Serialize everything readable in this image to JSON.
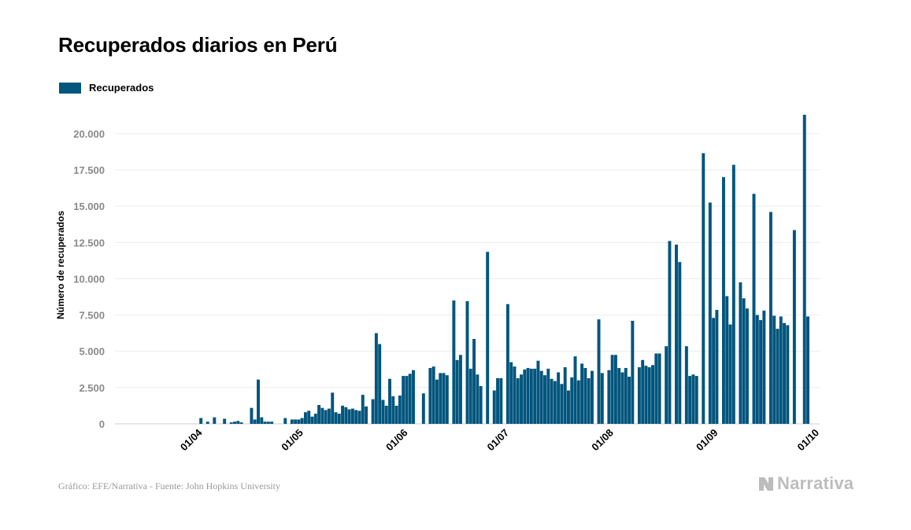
{
  "title": "Recuperados diarios en Perú",
  "footer": {
    "source": "Gráfico: EFE/Narrativa - Fuente: John Hopkins University",
    "brand": "Narrativa"
  },
  "chart_data": {
    "type": "bar",
    "series": [
      {
        "name": "Recuperados",
        "color": "#02557d",
        "start": "2020-03-06",
        "values": [
          0,
          0,
          0,
          0,
          0,
          0,
          0,
          0,
          0,
          0,
          0,
          0,
          0,
          0,
          0,
          0,
          0,
          0,
          0,
          0,
          0,
          0,
          0,
          0,
          0,
          400,
          0,
          150,
          0,
          450,
          0,
          0,
          350,
          0,
          100,
          150,
          200,
          100,
          0,
          0,
          1100,
          300,
          3050,
          450,
          150,
          150,
          150,
          0,
          0,
          0,
          400,
          0,
          300,
          300,
          300,
          400,
          800,
          900,
          500,
          700,
          1300,
          1100,
          950,
          1050,
          2150,
          800,
          700,
          1250,
          1150,
          1000,
          1050,
          950,
          900,
          2000,
          1200,
          0,
          1700,
          6250,
          5500,
          1650,
          1250,
          3100,
          1900,
          1250,
          1950,
          3300,
          3300,
          3450,
          3700,
          0,
          0,
          2100,
          0,
          3850,
          3950,
          3050,
          3500,
          3500,
          3350,
          0,
          8500,
          4400,
          4750,
          0,
          8450,
          3800,
          5850,
          3400,
          2600,
          0,
          11850,
          0,
          2300,
          3150,
          3150,
          0,
          8250,
          4250,
          3950,
          3150,
          3400,
          3750,
          3850,
          3800,
          3800,
          4350,
          3650,
          3350,
          3800,
          3100,
          2950,
          3550,
          2750,
          3900,
          2300,
          3200,
          4650,
          3000,
          4150,
          3850,
          3150,
          3650,
          0,
          7200,
          3500,
          0,
          3700,
          4750,
          4750,
          3850,
          3550,
          3850,
          3250,
          7100,
          0,
          3900,
          4400,
          4000,
          3900,
          4050,
          4850,
          4850,
          0,
          5350,
          12600,
          0,
          12350,
          11150,
          0,
          5350,
          3300,
          3400,
          3300,
          0,
          18650,
          0,
          15250,
          7300,
          7850,
          0,
          17000,
          8800,
          6850,
          17850,
          0,
          9750,
          8650,
          7950,
          0,
          15850,
          7500,
          7150,
          7800,
          0,
          14600,
          7450,
          6550,
          7400,
          6950,
          6800,
          0,
          13350,
          0,
          0,
          21300,
          7400
        ]
      }
    ],
    "x_ticks": [
      {
        "date": "2020-04-01",
        "label": "01/04"
      },
      {
        "date": "2020-05-01",
        "label": "01/05"
      },
      {
        "date": "2020-06-01",
        "label": "01/06"
      },
      {
        "date": "2020-07-01",
        "label": "01/07"
      },
      {
        "date": "2020-08-01",
        "label": "01/08"
      },
      {
        "date": "2020-09-01",
        "label": "01/09"
      },
      {
        "date": "2020-10-01",
        "label": "01/10"
      }
    ],
    "y_ticks": [
      {
        "value": 0,
        "label": "0"
      },
      {
        "value": 2500,
        "label": "2.500"
      },
      {
        "value": 5000,
        "label": "5.000"
      },
      {
        "value": 7500,
        "label": "7.500"
      },
      {
        "value": 10000,
        "label": "10.000"
      },
      {
        "value": 12500,
        "label": "12.500"
      },
      {
        "value": 15000,
        "label": "15.000"
      },
      {
        "value": 17500,
        "label": "17.500"
      },
      {
        "value": 20000,
        "label": "20.000"
      }
    ],
    "xlim": [
      "2020-03-06",
      "2020-10-01"
    ],
    "ylim": [
      0,
      22000
    ],
    "xlabel": "",
    "ylabel": "Número de recuperados",
    "grid": true,
    "legend_position": "top-left"
  }
}
